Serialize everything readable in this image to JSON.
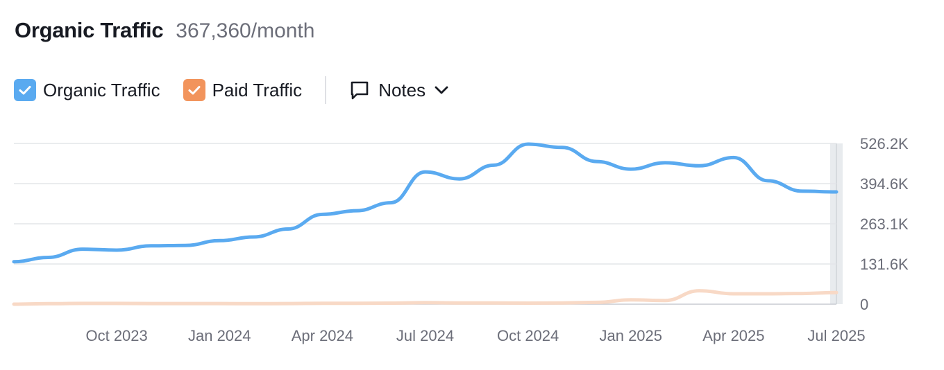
{
  "header": {
    "title": "Organic Traffic",
    "subtitle": "367,360/month"
  },
  "legend": [
    {
      "label": "Organic Traffic",
      "color": "#5aaaf0",
      "checked": true,
      "icon": "check-icon"
    },
    {
      "label": "Paid Traffic",
      "color": "#f2945c",
      "checked": true,
      "icon": "check-icon"
    }
  ],
  "notes": {
    "label": "Notes",
    "icon": "comment-icon",
    "chevron": "chevron-down-icon"
  },
  "chart_data": {
    "type": "line",
    "x": [
      "2023-07",
      "2023-08",
      "2023-09",
      "2023-10",
      "2023-11",
      "2023-12",
      "2024-01",
      "2024-02",
      "2024-03",
      "2024-04",
      "2024-05",
      "2024-06",
      "2024-07",
      "2024-08",
      "2024-09",
      "2024-10",
      "2024-11",
      "2024-12",
      "2025-01",
      "2025-02",
      "2025-03",
      "2025-04",
      "2025-05",
      "2025-06",
      "2025-07"
    ],
    "x_tick_labels": [
      "Oct 2023",
      "Jan 2024",
      "Apr 2024",
      "Jul 2024",
      "Oct 2024",
      "Jan 2025",
      "Apr 2025",
      "Jul 2025"
    ],
    "y_ticks": [
      "0",
      "131.6K",
      "263.1K",
      "394.6K",
      "526.2K"
    ],
    "ylim": [
      0,
      526200
    ],
    "grid": true,
    "series": [
      {
        "name": "Organic Traffic",
        "color": "#5aaaf0",
        "values": [
          139000,
          153000,
          180000,
          177000,
          191000,
          192000,
          208000,
          220000,
          246000,
          294000,
          306000,
          332000,
          433000,
          410000,
          455000,
          524000,
          513000,
          467000,
          442000,
          463000,
          453000,
          480000,
          404000,
          370000,
          367360
        ]
      },
      {
        "name": "Paid Traffic",
        "color": "#f8d9c6",
        "values": [
          0,
          1500,
          2500,
          2500,
          2000,
          2000,
          2000,
          1500,
          2000,
          3000,
          3000,
          3500,
          5000,
          4000,
          4000,
          3500,
          4000,
          6000,
          14000,
          12000,
          44000,
          34000,
          34000,
          35000,
          38000
        ]
      }
    ]
  }
}
